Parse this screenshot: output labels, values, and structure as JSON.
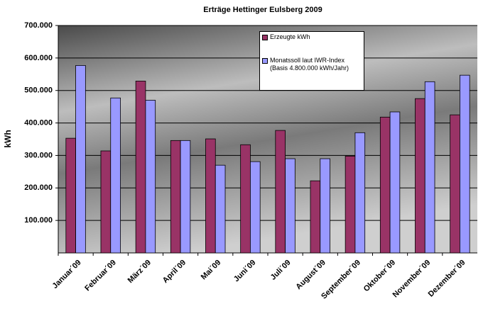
{
  "chart_data": {
    "type": "bar",
    "title": "Erträge Hettinger Eulsberg 2009",
    "y_label": "kWh",
    "categories": [
      "Januar´09",
      "Februar´09",
      "März´09",
      "April´09",
      "Mai´09",
      "Juni´09",
      "Juli´09",
      "August´09",
      "September´09",
      "Oktober´09",
      "November´09",
      "Dezember´09"
    ],
    "series": [
      {
        "name": "Erzeugte kWh",
        "color": "#993366",
        "values": [
          353000,
          314000,
          529000,
          346000,
          351000,
          333000,
          377000,
          222000,
          298000,
          418000,
          475000,
          425000
        ]
      },
      {
        "name": "Monatssoll laut IWR-Index\n(Basis 4.800.000 kWh/Jahr)",
        "color": "#9999ff",
        "values": [
          577000,
          477000,
          470000,
          346000,
          270000,
          281000,
          290000,
          290000,
          370000,
          434000,
          527000,
          547000
        ]
      }
    ],
    "ylim": [
      0,
      700000
    ],
    "yticks": [
      {
        "value": 100000,
        "label": "100.000"
      },
      {
        "value": 200000,
        "label": "200.000"
      },
      {
        "value": 300000,
        "label": "300.000"
      },
      {
        "value": 400000,
        "label": "400.000"
      },
      {
        "value": 500000,
        "label": "500.000"
      },
      {
        "value": 600000,
        "label": "600.000"
      },
      {
        "value": 700000,
        "label": "700.000"
      }
    ],
    "grid": true
  }
}
